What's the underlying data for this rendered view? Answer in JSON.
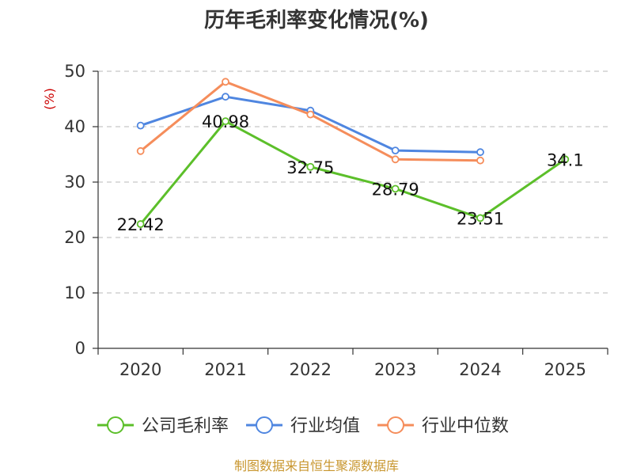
{
  "chart_data": {
    "type": "line",
    "title": "历年毛利率变化情况(%)",
    "ylabel": "(%)",
    "categories": [
      "2020",
      "2021",
      "2022",
      "2023",
      "2024",
      "2025"
    ],
    "ylim": [
      0,
      50
    ],
    "yticks": [
      0,
      10,
      20,
      30,
      40,
      50
    ],
    "grid": true,
    "legend_position": "bottom",
    "series": [
      {
        "name": "公司毛利率",
        "color": "#5cbf2a",
        "values": [
          22.42,
          40.98,
          32.75,
          28.79,
          23.51,
          34.1
        ],
        "data_labels": [
          "22.42",
          "40.98",
          "32.75",
          "28.79",
          "23.51",
          "34.1"
        ]
      },
      {
        "name": "行业均值",
        "color": "#4f86e0",
        "values": [
          40.2,
          45.4,
          42.9,
          35.7,
          35.4,
          null
        ]
      },
      {
        "name": "行业中位数",
        "color": "#f58d5b",
        "values": [
          35.6,
          48.1,
          42.2,
          34.1,
          33.9,
          null
        ]
      }
    ]
  },
  "source": "制图数据来自恒生聚源数据库",
  "colors": {
    "ylabel": "#cc0000",
    "source": "#c8962e"
  }
}
